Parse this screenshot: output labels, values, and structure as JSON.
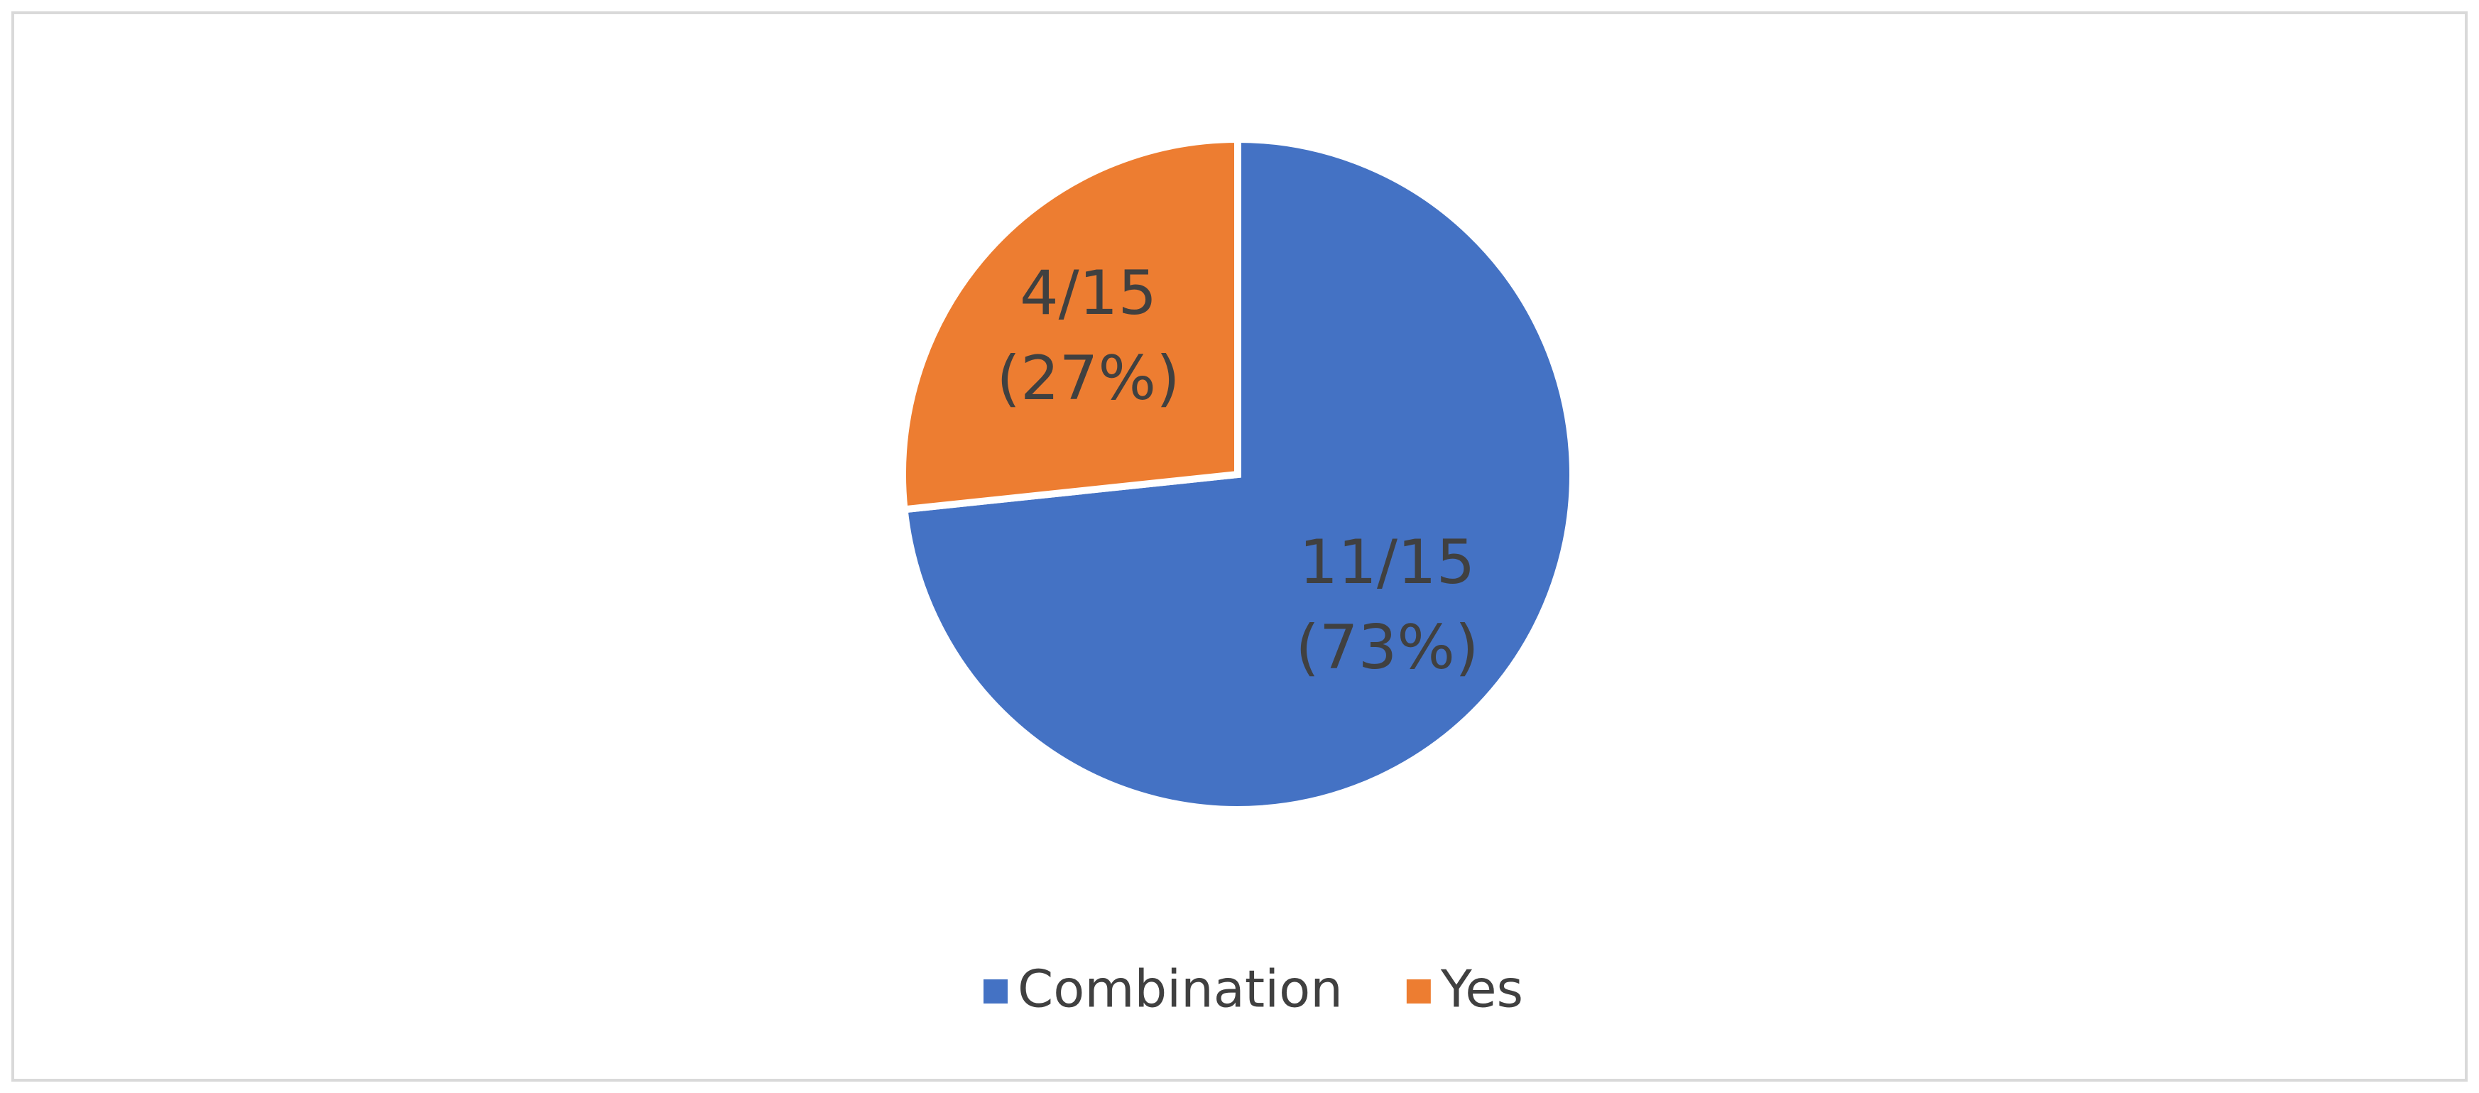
{
  "chart_data": {
    "type": "pie",
    "categories": [
      "Combination",
      "Yes"
    ],
    "values": [
      11,
      4
    ],
    "value_labels": [
      [
        "11/15",
        "(73%)"
      ],
      [
        "4/15",
        "(27%)"
      ]
    ],
    "colors": [
      "#4472c4",
      "#ed7d31"
    ],
    "legend": "bottom"
  }
}
